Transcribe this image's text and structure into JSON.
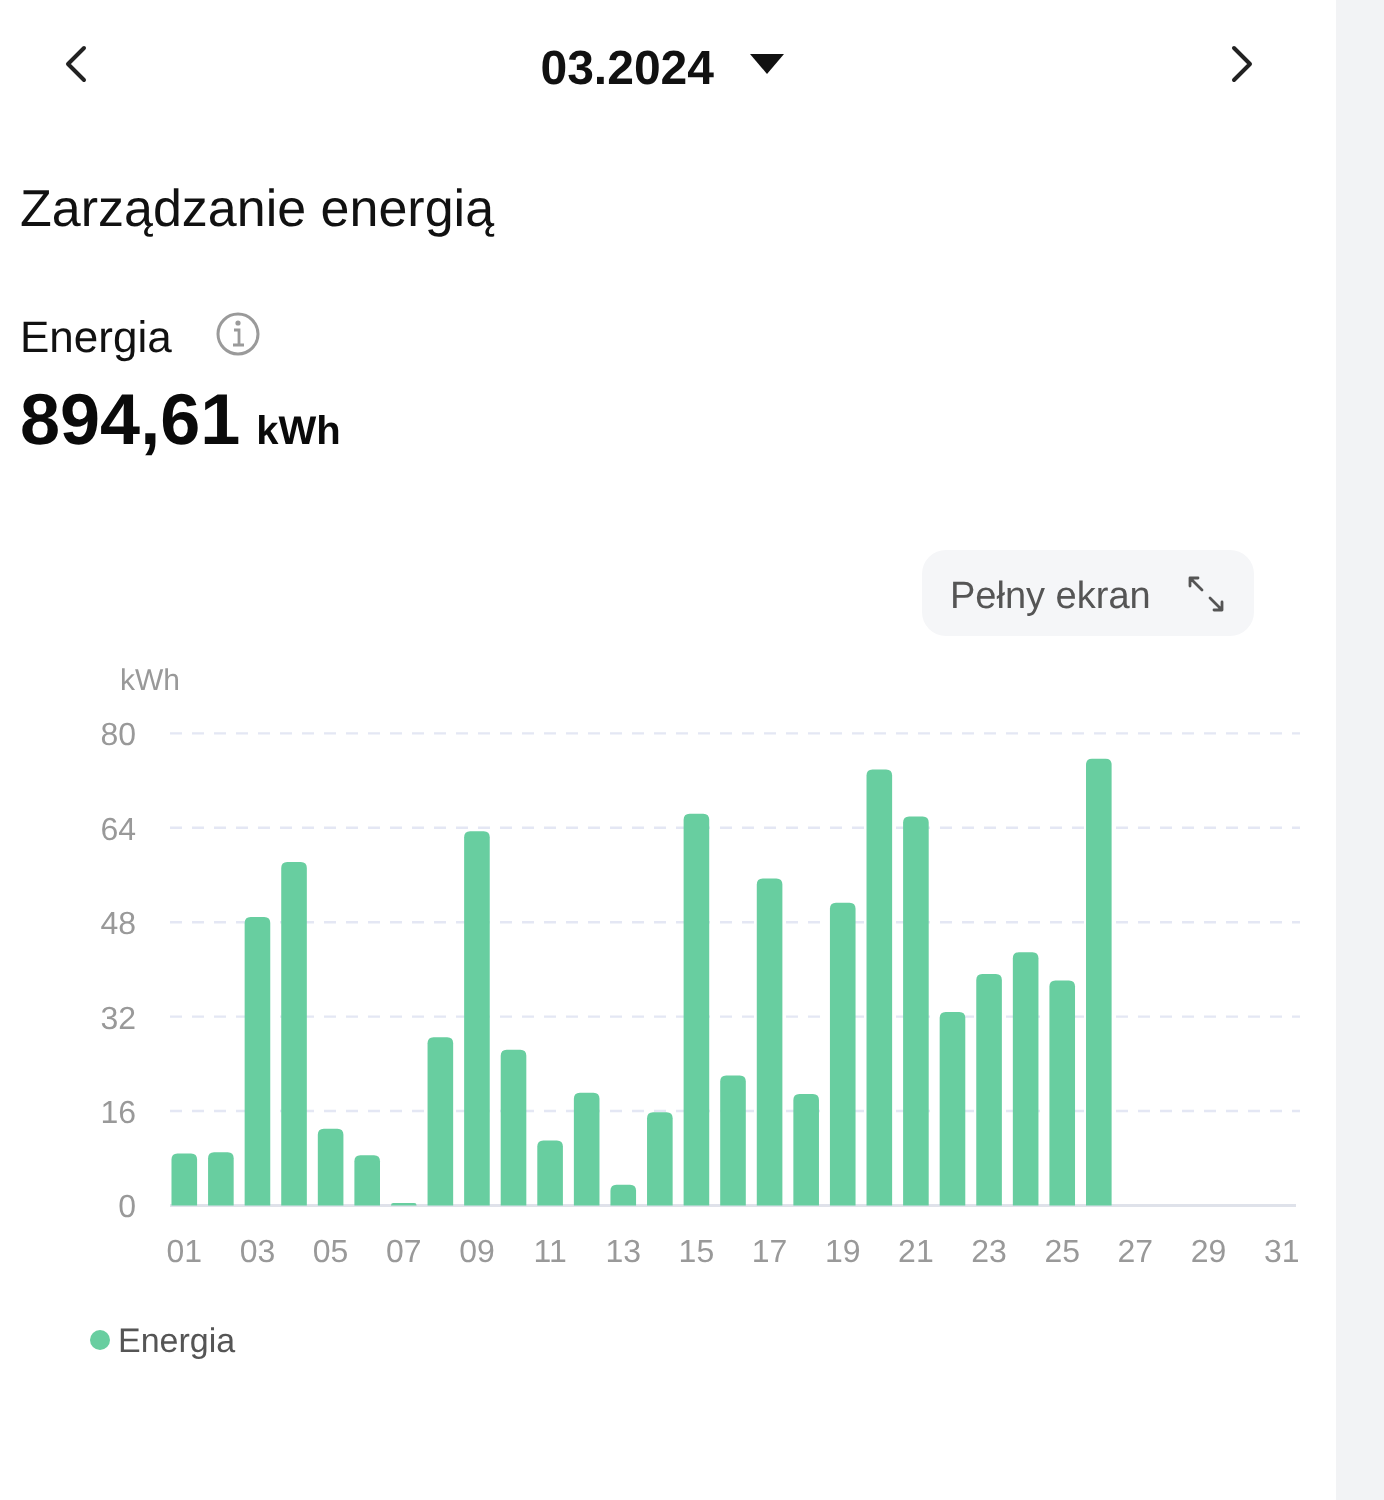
{
  "chart_data": {
    "type": "bar",
    "title": "Zarządzanie energią",
    "subtitle": "03.2024",
    "annotations": [
      "Energia",
      "894,61 kWh",
      "Pełny ekran"
    ],
    "ylabel": "kWh",
    "categories": [
      "01",
      null,
      "03",
      null,
      "05",
      null,
      "07",
      null,
      "09",
      null,
      "11",
      null,
      "13",
      null,
      "15",
      null,
      "17",
      null,
      "19",
      null,
      "21",
      null,
      "23",
      null,
      "25",
      null,
      "27",
      null,
      "29",
      null,
      "31"
    ],
    "series": [
      {
        "name": "Energia",
        "color": "#68cea0",
        "values": [
          8.8,
          9.0,
          48.9,
          58.2,
          13.0,
          8.5,
          0.4,
          28.5,
          63.4,
          26.4,
          11.0,
          19.1,
          3.5,
          15.8,
          66.4,
          22.0,
          55.4,
          18.9,
          51.3,
          73.9,
          65.9,
          32.8,
          39.2,
          42.9,
          38.1,
          75.7,
          null,
          null,
          null,
          null,
          null
        ]
      }
    ],
    "ylim": [
      0,
      80
    ],
    "yticks": [
      0,
      16,
      32,
      48,
      64,
      80
    ],
    "grid": "y",
    "legend": "bottom left"
  }
}
